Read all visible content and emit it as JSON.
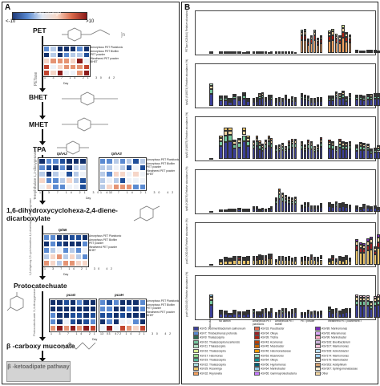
{
  "panel_a": {
    "label": "A",
    "colorbar": {
      "title": "Fold change",
      "min_label": "<-10",
      "max_label": ">10"
    },
    "compounds": [
      {
        "id": "pet",
        "text": "PET"
      },
      {
        "id": "bhet",
        "text": "BHET"
      },
      {
        "id": "mhet",
        "text": "MHET"
      },
      {
        "id": "tpa",
        "text": "TPA"
      },
      {
        "id": "dhcd",
        "text": "1,6-dihydroxycyclohexa-2,4-diene-dicarboxylate"
      },
      {
        "id": "pca",
        "text": "Protocatechuate"
      },
      {
        "id": "bcm",
        "text": "β -carboxy muconate"
      }
    ],
    "enzyme_labels": [
      "PETase",
      "Terephthalate 1,2-dioxygenase",
      "1,2-dihydroxy-3,5-cyclohexadiene-1,4-dicarboxylate dehydrogenase",
      "Protocatechuate 3,4-dioxygenase"
    ],
    "keto_label": "β -ketoadipate pathway",
    "heatmaps": [
      {
        "id": "petase",
        "title": "",
        "rows": [
          "Amorphous PET Planktonic",
          "Amorphous PET Biofilm",
          "PET powder",
          "Weathered PET powder",
          "BHET"
        ]
      },
      {
        "id": "tpha2",
        "title": "tphA2",
        "rows": [
          "Amorphous PET Planktonic",
          "Amorphous PET Biofilm",
          "PET powder",
          "Weathered PET powder",
          "BHET"
        ]
      },
      {
        "id": "tpha3",
        "title": "tphA3",
        "rows": []
      },
      {
        "id": "tphb",
        "title": "tphB",
        "rows": [
          "Amorphous PET Planktonic",
          "Amorphous PET Biofilm",
          "PET powder",
          "Weathered PET powder",
          "BHET"
        ]
      },
      {
        "id": "pcag",
        "title": "pcaG",
        "rows": [
          "Amorphous PET Planktonic",
          "Amorphous PET Biofilm",
          "PET powder",
          "Weathered PET powder",
          "BHET"
        ]
      },
      {
        "id": "pcah",
        "title": "pcaH",
        "rows": []
      }
    ],
    "days": [
      "1",
      "3",
      "7",
      "14",
      "21",
      "30",
      "42"
    ],
    "day_label": "Day",
    "inoculum_label": "Inoculum"
  },
  "panel_b": {
    "label": "B",
    "rows": [
      {
        "gene": "PETase",
        "ylabel": "PETase (K21644) Relative abundance (%)"
      },
      {
        "gene": "tphA2",
        "ylabel": "tphA2 (K18074) Relative abundance (%)"
      },
      {
        "gene": "tphA3",
        "ylabel": "tphA3 (K18075) Relative abundance (%)"
      },
      {
        "gene": "tphB",
        "ylabel": "tphB (K18076) Relative abundance (%)"
      },
      {
        "gene": "pcaG",
        "ylabel": "pcaG (K00448) Relative abundance (%)"
      },
      {
        "gene": "pcaH",
        "ylabel": "pcaH (K00449) Relative abundance (%)"
      }
    ],
    "groups": [
      "Inoculum",
      "No carbon",
      "Amorphous PET planktonic",
      "Amorphous PET biofilm",
      "PET powder",
      "Weathered PET powder",
      "BHET"
    ],
    "legend": [
      {
        "text": "ASV5: Sedimentibacterium salmoneum",
        "color": "#3b3f99"
      },
      {
        "text": "ASV7: Thiobacimonas profunda",
        "color": "#5a8ad1"
      },
      {
        "text": "ASV9: Thalassospira",
        "color": "#2d6a4f"
      },
      {
        "text": "ASV10: Thalassospira lucentensis",
        "color": "#74c69d"
      },
      {
        "text": "ASV11: Thalassospira",
        "color": "#b7e4c7"
      },
      {
        "text": "ASV16: Thalassospira",
        "color": "#d9ed92"
      },
      {
        "text": "ASV17: Halomonas",
        "color": "#99d98c"
      },
      {
        "text": "ASV19: Thalassospira",
        "color": "#52b69a"
      },
      {
        "text": "ASV22: Thalassospira",
        "color": "#a8dadc"
      },
      {
        "text": "ASV29: Roseivirga",
        "color": "#e9c46a"
      },
      {
        "text": "ASV32: Reyranella",
        "color": "#f4a261"
      },
      {
        "text": "ASV33: Paucibacter",
        "color": "#e76f51"
      },
      {
        "text": "ASV34: Olleya",
        "color": "#9b2226"
      },
      {
        "text": "ASV39: Trichia",
        "color": "#ae2012"
      },
      {
        "text": "ASV43: Azomonas",
        "color": "#bb3e03"
      },
      {
        "text": "ASV45: Mesobacter",
        "color": "#ca6702"
      },
      {
        "text": "ASV46: Halomonadaceae",
        "color": "#ee9b00"
      },
      {
        "text": "ASV53: Alcanivorax",
        "color": "#94d2bd"
      },
      {
        "text": "ASV54: Olleya",
        "color": "#0a9396"
      },
      {
        "text": "ASV56: Hyphomonas",
        "color": "#005f73"
      },
      {
        "text": "ASV64: Marinobacter",
        "color": "#8ecae6"
      },
      {
        "text": "ASV65: Gammaproteobacteria",
        "color": "#c77dff"
      },
      {
        "text": "ASV89: Marinomonas",
        "color": "#7b2cbf"
      },
      {
        "text": "ASV93: Alteromonas",
        "color": "#e0aaff"
      },
      {
        "text": "ASV99: Marinobacter",
        "color": "#ffafcc"
      },
      {
        "text": "ASV106: Brevibacterium",
        "color": "#cdb4db"
      },
      {
        "text": "ASV107: Marinomonas",
        "color": "#ffc8dd"
      },
      {
        "text": "ASV108: Acinetobacter",
        "color": "#bde0fe"
      },
      {
        "text": "ASV174: Marinomonas",
        "color": "#a2d2ff"
      },
      {
        "text": "ASV175: Marinobacter",
        "color": "#fefae0"
      },
      {
        "text": "ASV263: Acidiphilium",
        "color": "#d4a373"
      },
      {
        "text": "ASV307: Sphingomonadaceae",
        "color": "#faedcd"
      },
      {
        "text": "Other",
        "color": "#f2d6a2"
      }
    ]
  }
}
